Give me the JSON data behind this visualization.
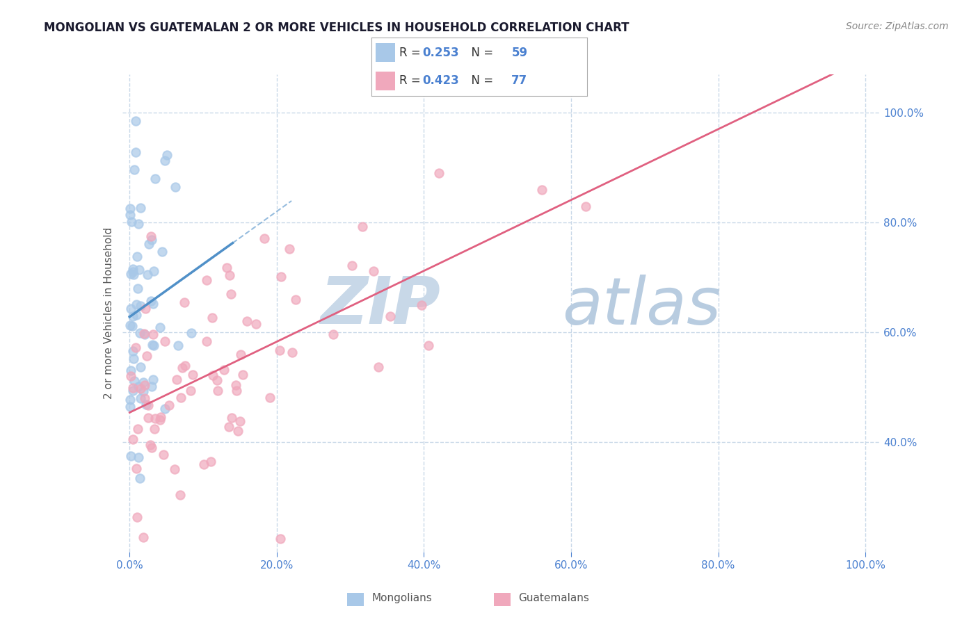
{
  "title": "MONGOLIAN VS GUATEMALAN 2 OR MORE VEHICLES IN HOUSEHOLD CORRELATION CHART",
  "source_text": "Source: ZipAtlas.com",
  "ylabel": "2 or more Vehicles in Household",
  "xlabel_mongolians": "Mongolians",
  "xlabel_guatemalans": "Guatemalans",
  "mongolian_R": "0.253",
  "mongolian_N": "59",
  "guatemalan_R": "0.423",
  "guatemalan_N": "77",
  "mongolian_color": "#a8c8e8",
  "mongolian_line_color": "#5090c8",
  "guatemalan_color": "#f0a8bc",
  "guatemalan_line_color": "#e06080",
  "watermark_zip": "ZIP",
  "watermark_atlas": "atlas",
  "watermark_color_zip": "#c8d8e8",
  "watermark_color_atlas": "#d0dce8",
  "grid_color": "#c8d8e8",
  "background_color": "#ffffff",
  "blue_text_color": "#4a80d0",
  "label_color": "#555555",
  "x_tick_vals": [
    0.0,
    0.2,
    0.4,
    0.6,
    0.8,
    1.0
  ],
  "x_tick_labels": [
    "0.0%",
    "20.0%",
    "40.0%",
    "60.0%",
    "80.0%",
    "100.0%"
  ],
  "y_tick_vals": [
    0.4,
    0.6,
    0.8,
    1.0
  ],
  "y_tick_labels": [
    "40.0%",
    "60.0%",
    "80.0%",
    "100.0%"
  ]
}
